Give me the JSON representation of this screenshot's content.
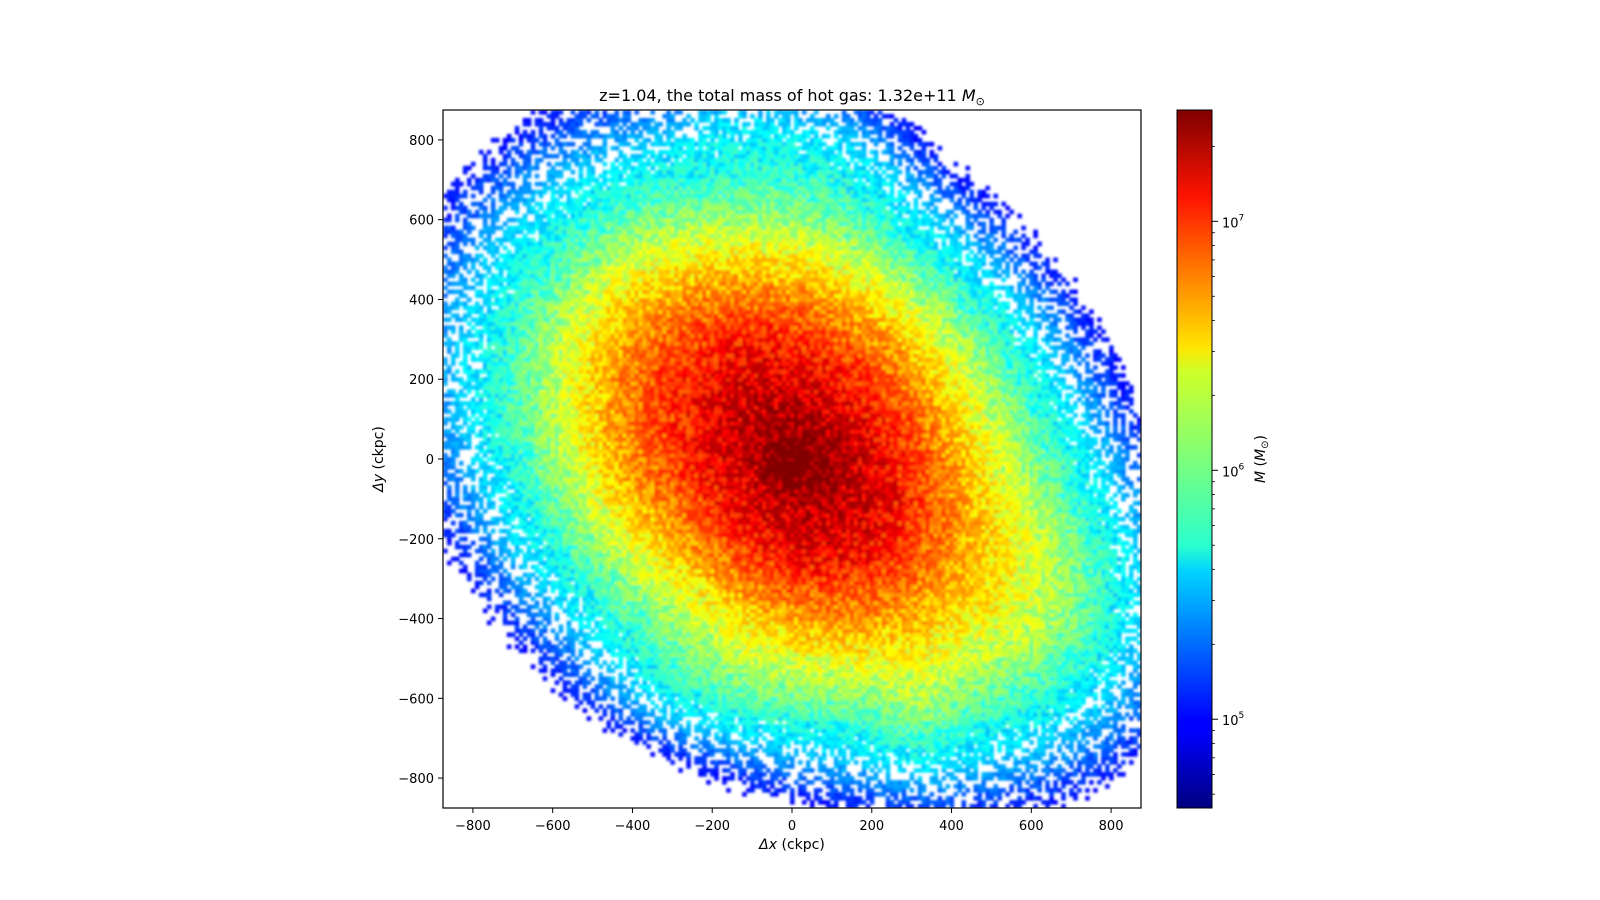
{
  "chart_data": {
    "type": "heatmap",
    "title_main": "z=1.04, the total mass of hot gas: 1.32e+11 ",
    "title_unit_symbol": "M",
    "title_unit_sub": "⊙",
    "xlabel_symbol": "Δx",
    "xlabel_unit": " (ckpc)",
    "ylabel_symbol": "Δy",
    "ylabel_unit": " (ckpc)",
    "xlim": [
      -875,
      875
    ],
    "ylim": [
      -875,
      875
    ],
    "xticks": [
      -800,
      -600,
      -400,
      -200,
      0,
      200,
      400,
      600,
      800
    ],
    "yticks": [
      -800,
      -600,
      -400,
      -200,
      0,
      200,
      400,
      600,
      800
    ],
    "xtick_labels": [
      "−800",
      "−600",
      "−400",
      "−200",
      "0",
      "200",
      "400",
      "600",
      "800"
    ],
    "ytick_labels": [
      "−800",
      "−600",
      "−400",
      "−200",
      "0",
      "200",
      "400",
      "600",
      "800"
    ],
    "grid": false,
    "colormap": "jet",
    "colorbar": {
      "scale": "log",
      "range": [
        44000,
        28000000
      ],
      "label_symbol": "M",
      "label_unit_open": " (",
      "label_unit_symbol": "M",
      "label_unit_sub": "⊙",
      "label_unit_close": ")",
      "major_ticks": [
        100000,
        1000000,
        10000000
      ],
      "tick_bases": [
        "10",
        "10",
        "10"
      ],
      "tick_exps": [
        "5",
        "6",
        "7"
      ],
      "minor_ticks": [
        50000,
        60000,
        70000,
        80000,
        90000,
        200000,
        300000,
        400000,
        500000,
        600000,
        700000,
        800000,
        900000,
        2000000,
        3000000,
        4000000,
        5000000,
        6000000,
        7000000,
        8000000,
        9000000,
        20000000
      ]
    },
    "approx_distribution": {
      "peak_at": [
        0,
        0
      ],
      "peak_mass": 28000000,
      "blobs": [
        {
          "center": [
            -30,
            80
          ],
          "sx": 220,
          "sy": 180,
          "rot_deg": -35,
          "peak": 12000000
        },
        {
          "center": [
            80,
            -120
          ],
          "sx": 170,
          "sy": 150,
          "rot_deg": -40,
          "peak": 8000000
        },
        {
          "center": [
            -60,
            60
          ],
          "sx": 360,
          "sy": 290,
          "rot_deg": -40,
          "peak": 4000000
        },
        {
          "center": [
            200,
            -200
          ],
          "sx": 330,
          "sy": 220,
          "rot_deg": -30,
          "peak": 2500000
        },
        {
          "center": [
            -80,
            220
          ],
          "sx": 260,
          "sy": 160,
          "rot_deg": 0,
          "peak": 1500000
        },
        {
          "center": [
            80,
            690
          ],
          "sx": 120,
          "sy": 140,
          "rot_deg": 30,
          "peak": 250000
        },
        {
          "center": [
            -150,
            810
          ],
          "sx": 90,
          "sy": 60,
          "rot_deg": 0,
          "peak": 150000
        },
        {
          "center": [
            320,
            -590
          ],
          "sx": 60,
          "sy": 100,
          "rot_deg": 0,
          "peak": 400000
        },
        {
          "center": [
            -150,
            -520
          ],
          "sx": 150,
          "sy": 90,
          "rot_deg": 0,
          "peak": 350000
        },
        {
          "center": [
            560,
            -300
          ],
          "sx": 130,
          "sy": 130,
          "rot_deg": 0,
          "peak": 500000
        },
        {
          "center": [
            660,
            -420
          ],
          "sx": 80,
          "sy": 60,
          "rot_deg": 0,
          "peak": 150000
        },
        {
          "center": [
            -380,
            110
          ],
          "sx": 90,
          "sy": 220,
          "rot_deg": 0,
          "peak": 700000
        }
      ]
    }
  }
}
